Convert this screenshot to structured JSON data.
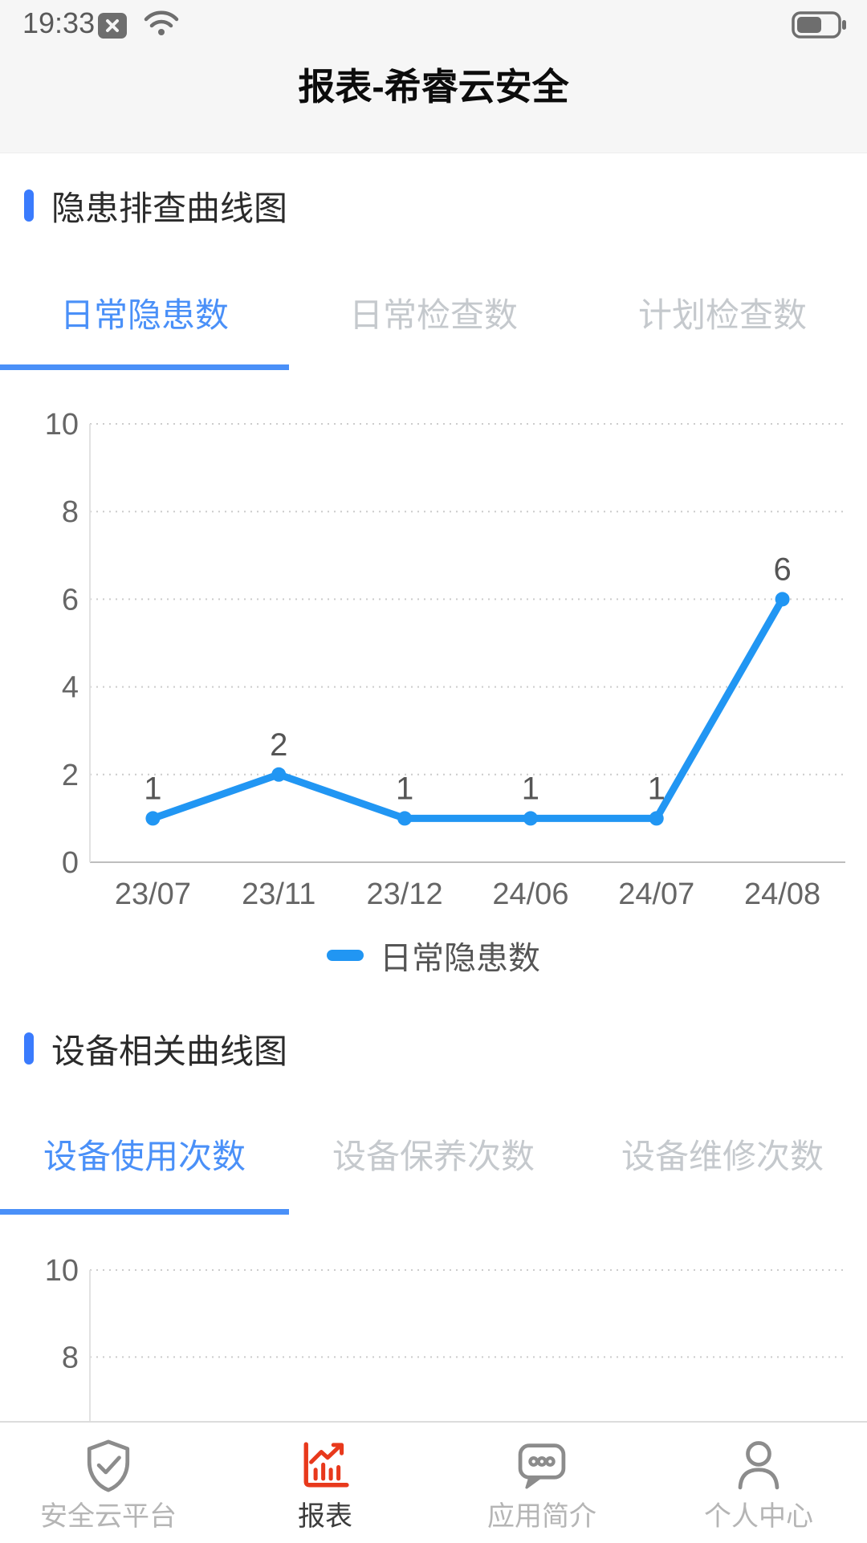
{
  "status_bar": {
    "time": "19:33",
    "icons": [
      "no-sim-icon",
      "wifi-icon",
      "battery-icon"
    ],
    "battery_level_percent": 60
  },
  "header": {
    "title": "报表-希睿云安全"
  },
  "sections": [
    {
      "title": "隐患排查曲线图",
      "tabs": [
        {
          "label": "日常隐患数",
          "active": true
        },
        {
          "label": "日常检查数",
          "active": false
        },
        {
          "label": "计划检查数",
          "active": false
        }
      ]
    },
    {
      "title": "设备相关曲线图",
      "tabs": [
        {
          "label": "设备使用次数",
          "active": true
        },
        {
          "label": "设备保养次数",
          "active": false
        },
        {
          "label": "设备维修次数",
          "active": false
        }
      ]
    }
  ],
  "chart_data": [
    {
      "type": "line",
      "title": "隐患排查曲线图",
      "series_name": "日常隐患数",
      "categories": [
        "23/07",
        "23/11",
        "23/12",
        "24/06",
        "24/07",
        "24/08"
      ],
      "values": [
        1,
        2,
        1,
        1,
        1,
        6
      ],
      "point_labels": [
        "1",
        "2",
        "1",
        "1",
        "1",
        "6"
      ],
      "ylim": [
        0,
        10
      ],
      "yticks": [
        0,
        2,
        4,
        6,
        8,
        10
      ],
      "grid": "dotted-horizontal",
      "legend": {
        "entries": [
          "日常隐患数"
        ],
        "position": "bottom"
      },
      "line_color": "#2196f3"
    },
    {
      "type": "line",
      "title": "设备相关曲线图",
      "series_name": "设备使用次数",
      "ylim": [
        0,
        10
      ],
      "visible_yticks": [
        10,
        8
      ],
      "grid": "dotted-horizontal",
      "values": []
    }
  ],
  "tabbar": {
    "items": [
      {
        "label": "安全云平台",
        "icon": "shield-check-icon",
        "active": false
      },
      {
        "label": "报表",
        "icon": "report-chart-icon",
        "active": true
      },
      {
        "label": "应用简介",
        "icon": "chat-bubble-icon",
        "active": false
      },
      {
        "label": "个人中心",
        "icon": "person-icon",
        "active": false
      }
    ]
  },
  "colors": {
    "accent_blue": "#4a90f8",
    "section_marker_blue": "#3a7bfd",
    "chart_line_blue": "#2196f3",
    "inactive_tab_gray": "#c5c9cd",
    "nav_icon_gray": "#8c8c8c",
    "nav_active_red": "#e8391c",
    "header_background": "#f6f6f6"
  }
}
